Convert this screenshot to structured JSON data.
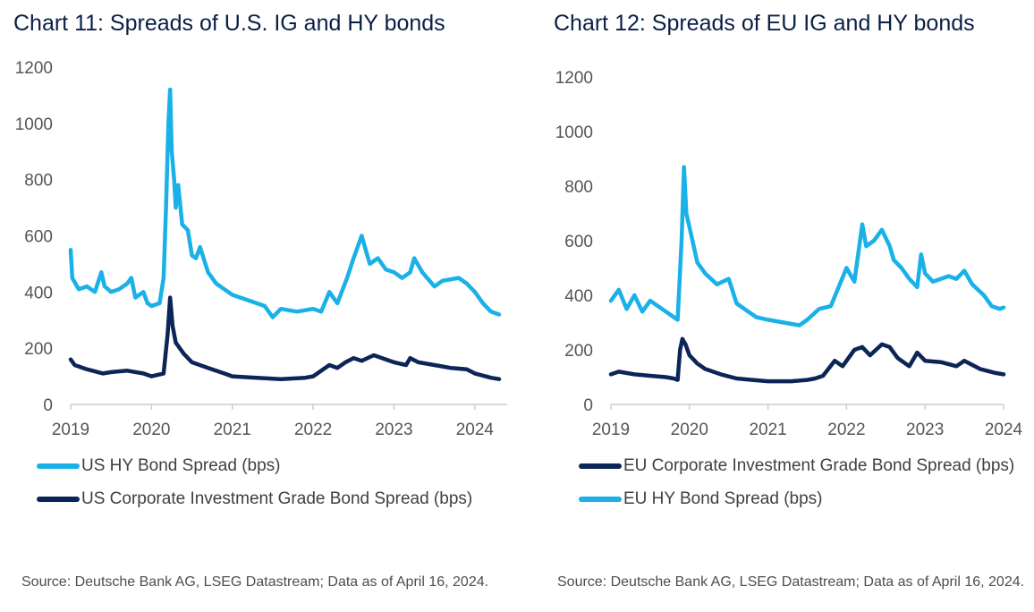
{
  "colors": {
    "hy": "#1ab0e8",
    "ig": "#0c2557",
    "axis": "#cccccc",
    "text": "#555555"
  },
  "chart_data": [
    {
      "type": "line",
      "title": "Chart 11: Spreads of U.S. IG and HY bonds",
      "ylim": [
        0,
        1200
      ],
      "y_ticks": [
        0,
        200,
        400,
        600,
        800,
        1000,
        1200
      ],
      "xlim": [
        2019,
        2024.4
      ],
      "x_ticks": [
        2019,
        2020,
        2021,
        2022,
        2023,
        2024
      ],
      "legend": [
        "US HY Bond Spread (bps)",
        "US Corporate Investment Grade Bond Spread (bps)"
      ],
      "series": [
        {
          "name": "US HY Bond Spread (bps)",
          "color": "#1ab0e8",
          "x": [
            2019.0,
            2019.02,
            2019.1,
            2019.2,
            2019.3,
            2019.38,
            2019.42,
            2019.5,
            2019.6,
            2019.7,
            2019.75,
            2019.8,
            2019.9,
            2019.95,
            2020.0,
            2020.1,
            2020.15,
            2020.18,
            2020.21,
            2020.23,
            2020.25,
            2020.28,
            2020.3,
            2020.33,
            2020.38,
            2020.45,
            2020.5,
            2020.55,
            2020.6,
            2020.7,
            2020.8,
            2020.9,
            2021.0,
            2021.2,
            2021.4,
            2021.5,
            2021.6,
            2021.8,
            2022.0,
            2022.1,
            2022.2,
            2022.3,
            2022.42,
            2022.5,
            2022.6,
            2022.7,
            2022.8,
            2022.9,
            2023.0,
            2023.1,
            2023.2,
            2023.25,
            2023.35,
            2023.5,
            2023.6,
            2023.8,
            2023.9,
            2024.0,
            2024.1,
            2024.2,
            2024.3
          ],
          "values": [
            550,
            450,
            410,
            420,
            400,
            470,
            420,
            400,
            410,
            430,
            450,
            380,
            400,
            360,
            350,
            360,
            450,
            700,
            1000,
            1120,
            900,
            800,
            700,
            780,
            640,
            620,
            530,
            520,
            560,
            470,
            430,
            410,
            390,
            370,
            350,
            310,
            340,
            330,
            340,
            330,
            400,
            360,
            450,
            520,
            600,
            500,
            520,
            480,
            470,
            450,
            470,
            520,
            470,
            420,
            440,
            450,
            430,
            400,
            360,
            330,
            320
          ]
        },
        {
          "name": "US Corporate Investment Grade Bond Spread (bps)",
          "color": "#0c2557",
          "x": [
            2019.0,
            2019.05,
            2019.2,
            2019.4,
            2019.5,
            2019.7,
            2019.9,
            2020.0,
            2020.15,
            2020.2,
            2020.23,
            2020.26,
            2020.3,
            2020.4,
            2020.5,
            2020.7,
            2020.9,
            2021.0,
            2021.3,
            2021.6,
            2021.9,
            2022.0,
            2022.2,
            2022.3,
            2022.4,
            2022.5,
            2022.6,
            2022.75,
            2022.9,
            2023.0,
            2023.15,
            2023.2,
            2023.3,
            2023.5,
            2023.7,
            2023.9,
            2024.0,
            2024.2,
            2024.3
          ],
          "values": [
            160,
            140,
            125,
            110,
            115,
            120,
            110,
            100,
            110,
            250,
            380,
            280,
            220,
            180,
            150,
            130,
            110,
            100,
            95,
            90,
            95,
            100,
            140,
            130,
            150,
            165,
            155,
            175,
            160,
            150,
            140,
            165,
            150,
            140,
            130,
            125,
            110,
            95,
            90
          ]
        }
      ]
    },
    {
      "type": "line",
      "title": "Chart 12: Spreads of EU IG and HY bonds",
      "ylim": [
        0,
        1200
      ],
      "y_ticks": [
        0,
        200,
        400,
        600,
        800,
        1000,
        1200
      ],
      "xlim": [
        2019,
        2024
      ],
      "x_ticks": [
        2019,
        2020,
        2021,
        2022,
        2023,
        2024
      ],
      "legend": [
        "EU Corporate Investment Grade Bond Spread (bps)",
        "EU HY Bond Spread (bps)"
      ],
      "series": [
        {
          "name": "EU Corporate Investment Grade Bond Spread (bps)",
          "color": "#0c2557",
          "x": [
            2019.0,
            2019.1,
            2019.3,
            2019.5,
            2019.7,
            2019.8,
            2019.85,
            2019.88,
            2019.91,
            2019.95,
            2020.0,
            2020.1,
            2020.2,
            2020.4,
            2020.6,
            2020.8,
            2021.0,
            2021.3,
            2021.5,
            2021.6,
            2021.7,
            2021.85,
            2021.95,
            2022.1,
            2022.2,
            2022.3,
            2022.45,
            2022.55,
            2022.65,
            2022.8,
            2022.9,
            2023.0,
            2023.2,
            2023.4,
            2023.5,
            2023.7,
            2023.9,
            2024.0
          ],
          "values": [
            110,
            120,
            110,
            105,
            100,
            95,
            90,
            200,
            240,
            220,
            180,
            150,
            130,
            110,
            95,
            90,
            85,
            85,
            90,
            95,
            105,
            160,
            140,
            200,
            210,
            180,
            220,
            210,
            170,
            140,
            190,
            160,
            155,
            140,
            160,
            130,
            115,
            110
          ]
        },
        {
          "name": "EU HY Bond Spread (bps)",
          "color": "#1ab0e8",
          "x": [
            2019.0,
            2019.1,
            2019.2,
            2019.3,
            2019.4,
            2019.5,
            2019.6,
            2019.7,
            2019.8,
            2019.85,
            2019.9,
            2019.93,
            2019.96,
            2020.0,
            2020.1,
            2020.2,
            2020.35,
            2020.5,
            2020.6,
            2020.7,
            2020.85,
            2021.0,
            2021.2,
            2021.4,
            2021.5,
            2021.65,
            2021.8,
            2022.0,
            2022.1,
            2022.2,
            2022.25,
            2022.35,
            2022.45,
            2022.55,
            2022.6,
            2022.7,
            2022.8,
            2022.9,
            2022.95,
            2023.0,
            2023.1,
            2023.3,
            2023.4,
            2023.5,
            2023.6,
            2023.75,
            2023.85,
            2023.95,
            2024.0
          ],
          "values": [
            380,
            420,
            350,
            400,
            340,
            380,
            360,
            340,
            320,
            310,
            600,
            870,
            700,
            650,
            520,
            480,
            440,
            460,
            370,
            350,
            320,
            310,
            300,
            290,
            310,
            350,
            360,
            500,
            450,
            660,
            580,
            600,
            640,
            580,
            530,
            500,
            460,
            430,
            550,
            480,
            450,
            470,
            460,
            490,
            440,
            400,
            360,
            350,
            355
          ]
        }
      ]
    }
  ],
  "charts": [
    {
      "title": "Chart 11: Spreads of U.S. IG and HY bonds",
      "legend": [
        "US HY Bond Spread (bps)",
        "US Corporate Investment Grade Bond Spread (bps)"
      ],
      "source": "Source: Deutsche Bank AG, LSEG Datastream; Data as of April 16, 2024."
    },
    {
      "title": "Chart 12: Spreads of EU IG and HY bonds",
      "legend": [
        "EU Corporate Investment Grade Bond Spread (bps)",
        "EU HY Bond Spread (bps)"
      ],
      "source": "Source: Deutsche Bank AG, LSEG Datastream; Data as of April 16, 2024."
    }
  ]
}
